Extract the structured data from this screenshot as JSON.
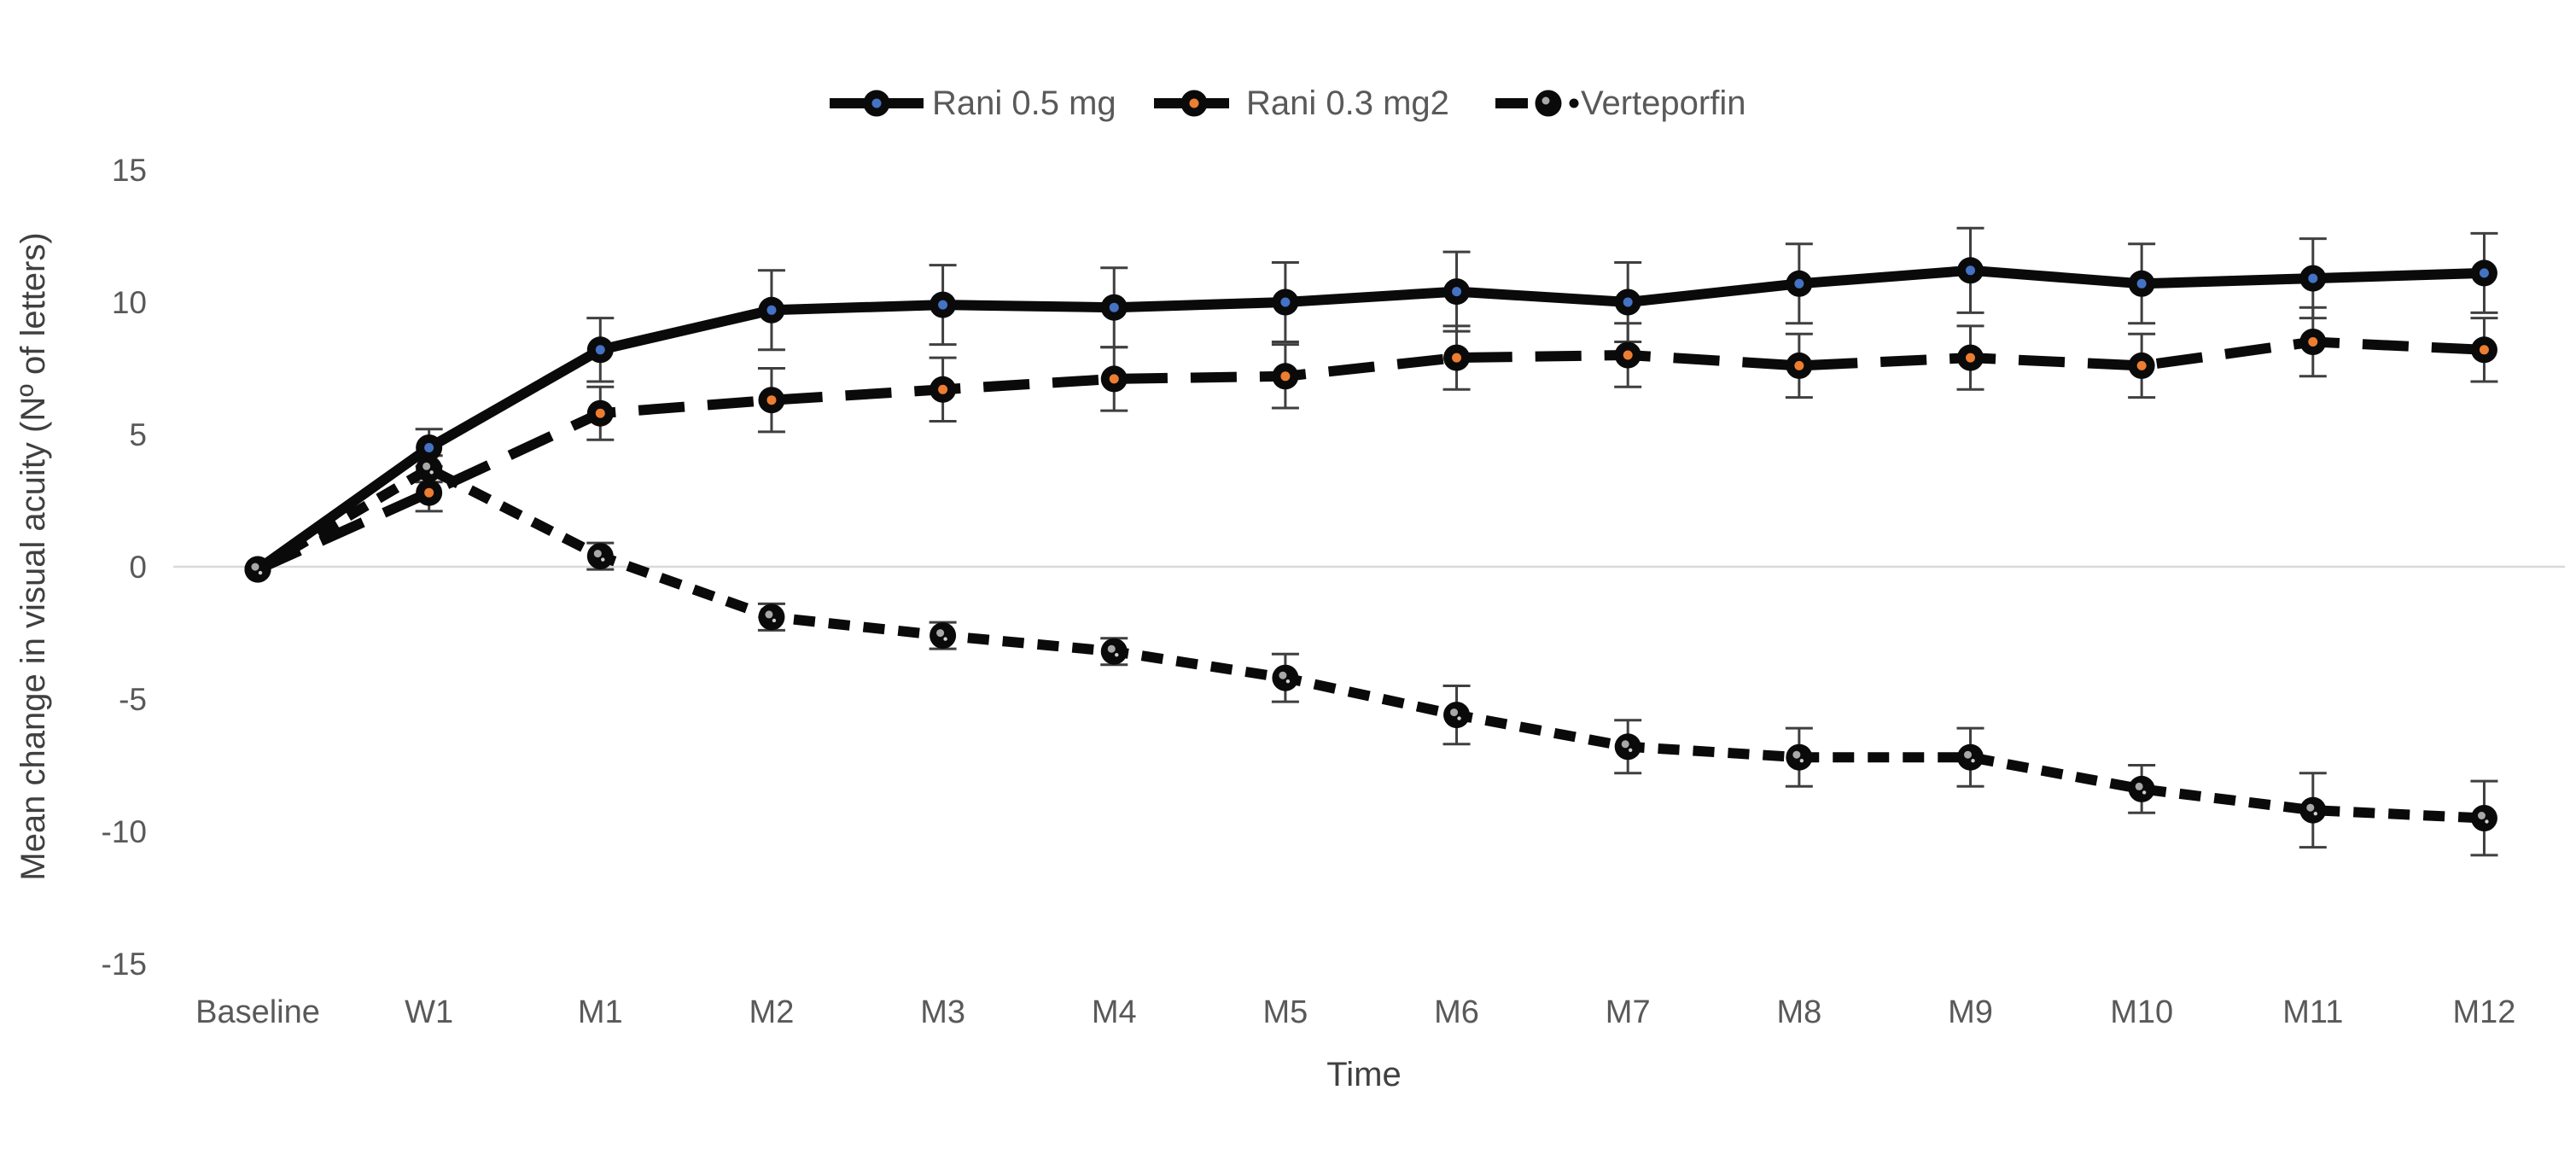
{
  "chart_data": {
    "type": "line",
    "title": "",
    "xlabel": "Time",
    "ylabel": "Mean change in visual acuity (Nº of letters)",
    "ylim": [
      -15,
      15
    ],
    "ytick_values": [
      15,
      10,
      5,
      0,
      -5,
      -10,
      -15
    ],
    "ytick_labels": [
      "15",
      "10",
      "5",
      "0",
      "-5",
      "-10",
      "-15"
    ],
    "grid": "zero-line-only",
    "legend_position": "top-center",
    "categories": [
      "Baseline",
      "W1",
      "M1",
      "M2",
      "M3",
      "M4",
      "M5",
      "M6",
      "M7",
      "M8",
      "M9",
      "M10",
      "M11",
      "M12"
    ],
    "series": [
      {
        "name": "Rani 0.5 mg",
        "line_style": "solid",
        "line_color": "#0a0a0a",
        "marker": "circle-black-ring",
        "marker_center_color": "#4472c4",
        "values": [
          -0.1,
          4.5,
          8.2,
          9.7,
          9.9,
          9.8,
          10.0,
          10.4,
          10.0,
          10.7,
          11.2,
          10.7,
          10.9,
          11.1
        ],
        "error_bars": [
          0,
          0.7,
          1.2,
          1.5,
          1.5,
          1.5,
          1.5,
          1.5,
          1.5,
          1.5,
          1.6,
          1.5,
          1.5,
          1.5
        ]
      },
      {
        "name": "Rani 0.3 mg2",
        "line_style": "long-dash",
        "line_color": "#0a0a0a",
        "marker": "circle-black-ring",
        "marker_center_color": "#ed7d31",
        "values": [
          -0.1,
          2.8,
          5.8,
          6.3,
          6.7,
          7.1,
          7.2,
          7.9,
          8.0,
          7.6,
          7.9,
          7.6,
          8.5,
          8.2
        ],
        "error_bars": [
          0,
          0.7,
          1.0,
          1.2,
          1.2,
          1.2,
          1.2,
          1.2,
          1.2,
          1.2,
          1.2,
          1.2,
          1.3,
          1.2
        ]
      },
      {
        "name": "Verteporfin",
        "line_style": "short-dash",
        "line_color": "#0a0a0a",
        "marker": "circle-black-speck",
        "marker_center_color": "#a8a8a8",
        "values": [
          -0.1,
          3.7,
          0.4,
          -1.9,
          -2.6,
          -3.2,
          -4.2,
          -5.6,
          -6.8,
          -7.2,
          -7.2,
          -8.4,
          -9.2,
          -9.5
        ],
        "error_bars": [
          0,
          0.5,
          0.5,
          0.5,
          0.5,
          0.5,
          0.9,
          1.1,
          1.0,
          1.1,
          1.1,
          0.9,
          1.4,
          1.4
        ]
      }
    ]
  },
  "colors": {
    "tick_text": "#595959",
    "axis_title_text": "#404040",
    "legend_text": "#595959",
    "zero_gridline": "#d9d9d9",
    "error_bar": "#3f3f3f",
    "series_line": "#0a0a0a",
    "accent_blue": "#4472c4",
    "accent_orange": "#ed7d31"
  }
}
